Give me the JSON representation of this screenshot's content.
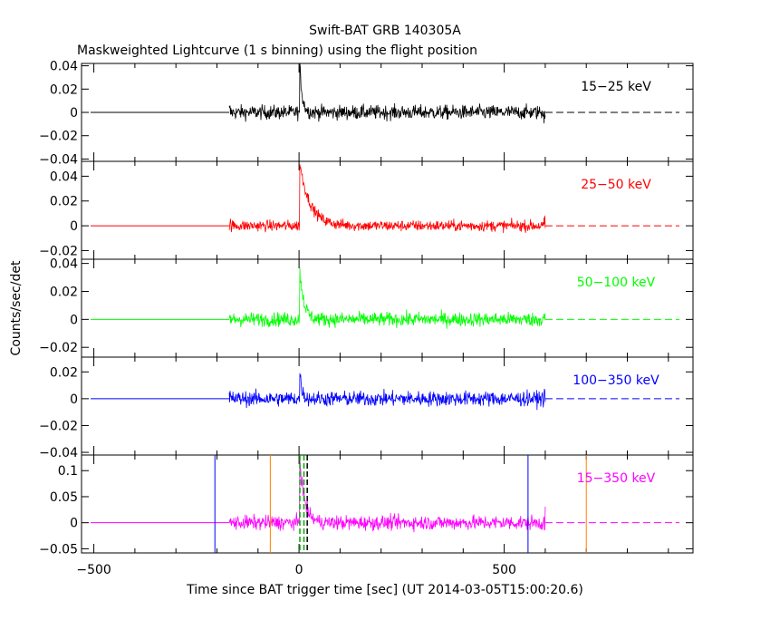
{
  "chart_data": {
    "type": "line",
    "title": "Swift-BAT GRB 140305A",
    "subtitle": "Maskweighted Lightcurve (1 s binning) using the flight position",
    "ylabel": "Counts/sec/det",
    "xlabel": "Time since BAT trigger time [sec] (UT 2014-03-05T15:00:20.6)",
    "xlim": [
      -530,
      960
    ],
    "x_ticks": [
      -500,
      0,
      500
    ],
    "grid": false,
    "panels": [
      {
        "name": "15-25 keV",
        "color": "#000000",
        "ylim": [
          -0.042,
          0.042
        ],
        "y_ticks": [
          0.04,
          0.02,
          0,
          -0.02,
          -0.04
        ],
        "y_tick_labels": [
          "0.04",
          "0.02",
          "0",
          "−0.02",
          "−0.04"
        ],
        "noise_amplitude": 0.011,
        "spike": {
          "x": 2,
          "peak": 0.04,
          "decay": 6
        }
      },
      {
        "name": "25-50 keV",
        "color": "#ff0000",
        "ylim": [
          -0.027,
          0.052
        ],
        "y_ticks": [
          0.04,
          0.02,
          0,
          -0.02
        ],
        "y_tick_labels": [
          "0.04",
          "0.02",
          "0",
          "−0.02"
        ],
        "noise_amplitude": 0.008,
        "spike": {
          "x": 2,
          "peak": 0.05,
          "decay": 25
        }
      },
      {
        "name": "50-100 keV",
        "color": "#00ff00",
        "ylim": [
          -0.027,
          0.043
        ],
        "y_ticks": [
          0.04,
          0.02,
          0,
          -0.02
        ],
        "y_tick_labels": [
          "0.04",
          "0.02",
          "0",
          "−0.02"
        ],
        "noise_amplitude": 0.009,
        "spike": {
          "x": 2,
          "peak": 0.035,
          "decay": 10
        }
      },
      {
        "name": "100-350 keV",
        "color": "#0000ff",
        "ylim": [
          -0.042,
          0.031
        ],
        "y_ticks": [
          0.02,
          0,
          -0.02,
          -0.04
        ],
        "y_tick_labels": [
          "0.02",
          "0",
          "−0.02",
          "−0.04"
        ],
        "noise_amplitude": 0.01,
        "spike": {
          "x": 2,
          "peak": 0.02,
          "decay": 5
        }
      },
      {
        "name": "15-350 keV",
        "color": "#ff00ff",
        "ylim": [
          -0.058,
          0.13
        ],
        "y_ticks": [
          0.1,
          0.05,
          0,
          -0.05
        ],
        "y_tick_labels": [
          "0.1",
          "0.05",
          "0",
          "−0.05"
        ],
        "noise_amplitude": 0.025,
        "spike": {
          "x": 2,
          "peak": 0.12,
          "decay": 12
        },
        "markers": [
          {
            "x": -205,
            "color": "#0000ff",
            "style": "solid"
          },
          {
            "x": 558,
            "color": "#0000ff",
            "style": "solid"
          },
          {
            "x": -70,
            "color": "#ff8000",
            "style": "solid"
          },
          {
            "x": 700,
            "color": "#ff8000",
            "style": "solid"
          },
          {
            "x": 2,
            "color": "#00aa00",
            "style": "dashed"
          },
          {
            "x": 12,
            "color": "#00aa00",
            "style": "dashed"
          },
          {
            "x": 20,
            "color": "#000000",
            "style": "dashed"
          }
        ]
      }
    ],
    "data_range": [
      -170,
      600
    ],
    "baseline_value": 0
  }
}
